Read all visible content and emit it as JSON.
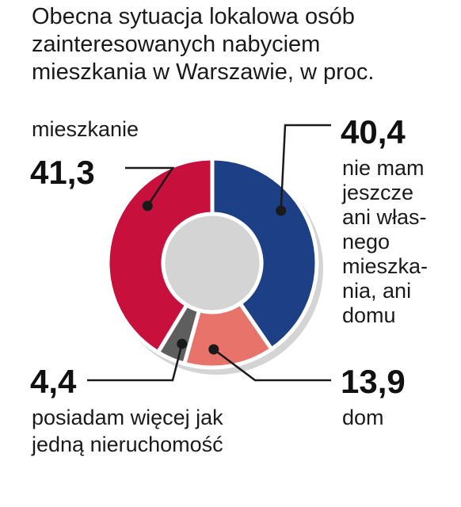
{
  "chart_data": {
    "type": "pie",
    "title_lines": [
      "Obecna sytuacja lokalowa osób",
      "zainteresowanych nabyciem",
      "mieszkania w Warszawie, w proc."
    ],
    "slices": [
      {
        "value": 40.4,
        "value_label": "40,4",
        "label_lines": [
          "nie mam",
          "jeszcze",
          "ani włas-",
          "nego",
          "mieszka-",
          "nia, ani",
          "domu"
        ],
        "color": "#1d3f85"
      },
      {
        "value": 13.9,
        "value_label": "13,9",
        "label_lines": [
          "dom"
        ],
        "color": "#e8736b"
      },
      {
        "value": 4.4,
        "value_label": "4,4",
        "label_lines": [
          "posiadam więcej jak",
          "jedną nieruchomość"
        ],
        "color": "#5e5e5e"
      },
      {
        "value": 41.3,
        "value_label": "41,3",
        "label_lines": [
          "mieszkanie"
        ],
        "color": "#c8103c"
      }
    ]
  }
}
